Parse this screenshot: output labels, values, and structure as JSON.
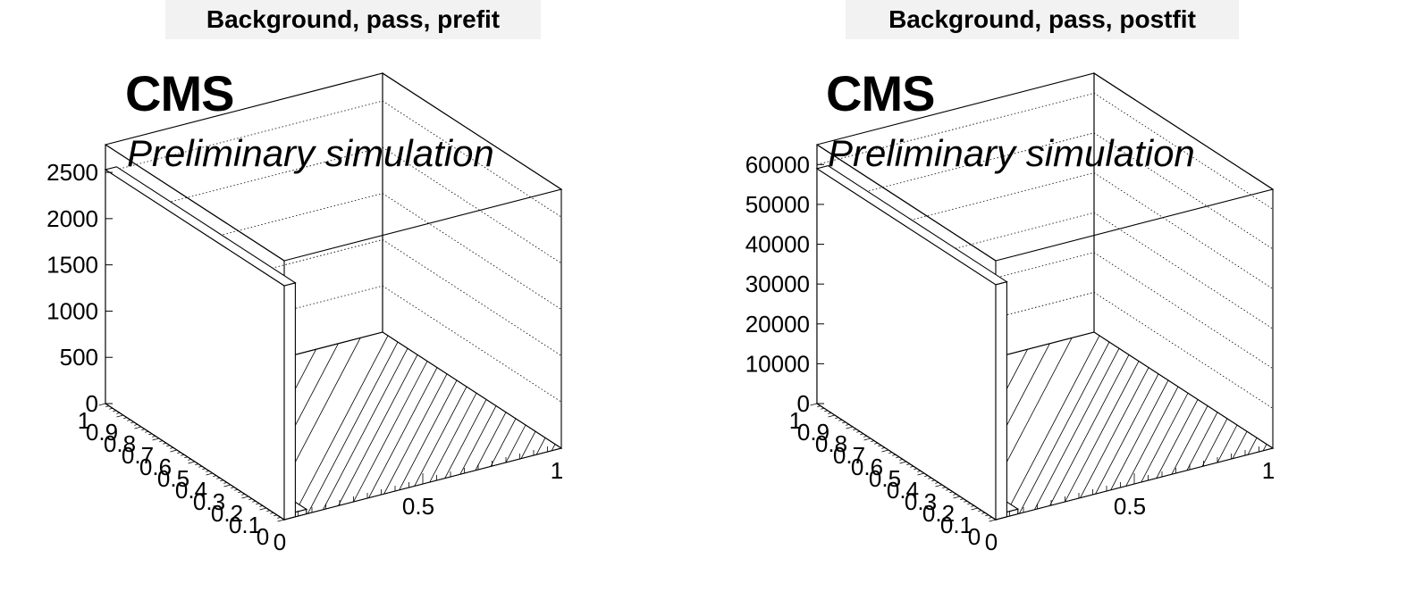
{
  "cms_label": "CMS",
  "preliminary_label": "Preliminary simulation",
  "chart_data": [
    {
      "type": "bar",
      "title": "Background, pass, prefit",
      "ylim": [
        0,
        2800
      ],
      "z_ticks": [
        "0",
        "500",
        "1000",
        "1500",
        "2000",
        "2500"
      ],
      "z_tick_values": [
        0,
        500,
        1000,
        1500,
        2000,
        2500
      ],
      "x_ticks": [
        "0",
        "0.5",
        "1"
      ],
      "y_ticks": [
        "0",
        "0.1",
        "0.2",
        "0.3",
        "0.4",
        "0.5",
        "0.6",
        "0.7",
        "0.8",
        "0.9",
        "1"
      ],
      "bins": [
        {
          "x": [
            0,
            0.08
          ],
          "y": [
            0,
            0.1
          ],
          "value": 50
        },
        {
          "x": [
            0,
            0.04
          ],
          "y": [
            0,
            1.0
          ],
          "value": 2530
        }
      ],
      "grid": true
    },
    {
      "type": "bar",
      "title": "Background, pass, postfit",
      "ylim": [
        0,
        65000
      ],
      "z_ticks": [
        "0",
        "10000",
        "20000",
        "30000",
        "40000",
        "50000",
        "60000"
      ],
      "z_tick_values": [
        0,
        10000,
        20000,
        30000,
        40000,
        50000,
        60000
      ],
      "x_ticks": [
        "0",
        "0.5",
        "1"
      ],
      "y_ticks": [
        "0",
        "0.1",
        "0.2",
        "0.3",
        "0.4",
        "0.5",
        "0.6",
        "0.7",
        "0.8",
        "0.9",
        "1"
      ],
      "bins": [
        {
          "x": [
            0,
            0.08
          ],
          "y": [
            0,
            0.1
          ],
          "value": 1200
        },
        {
          "x": [
            0,
            0.04
          ],
          "y": [
            0,
            1.0
          ],
          "value": 59000
        }
      ],
      "grid": true
    }
  ]
}
